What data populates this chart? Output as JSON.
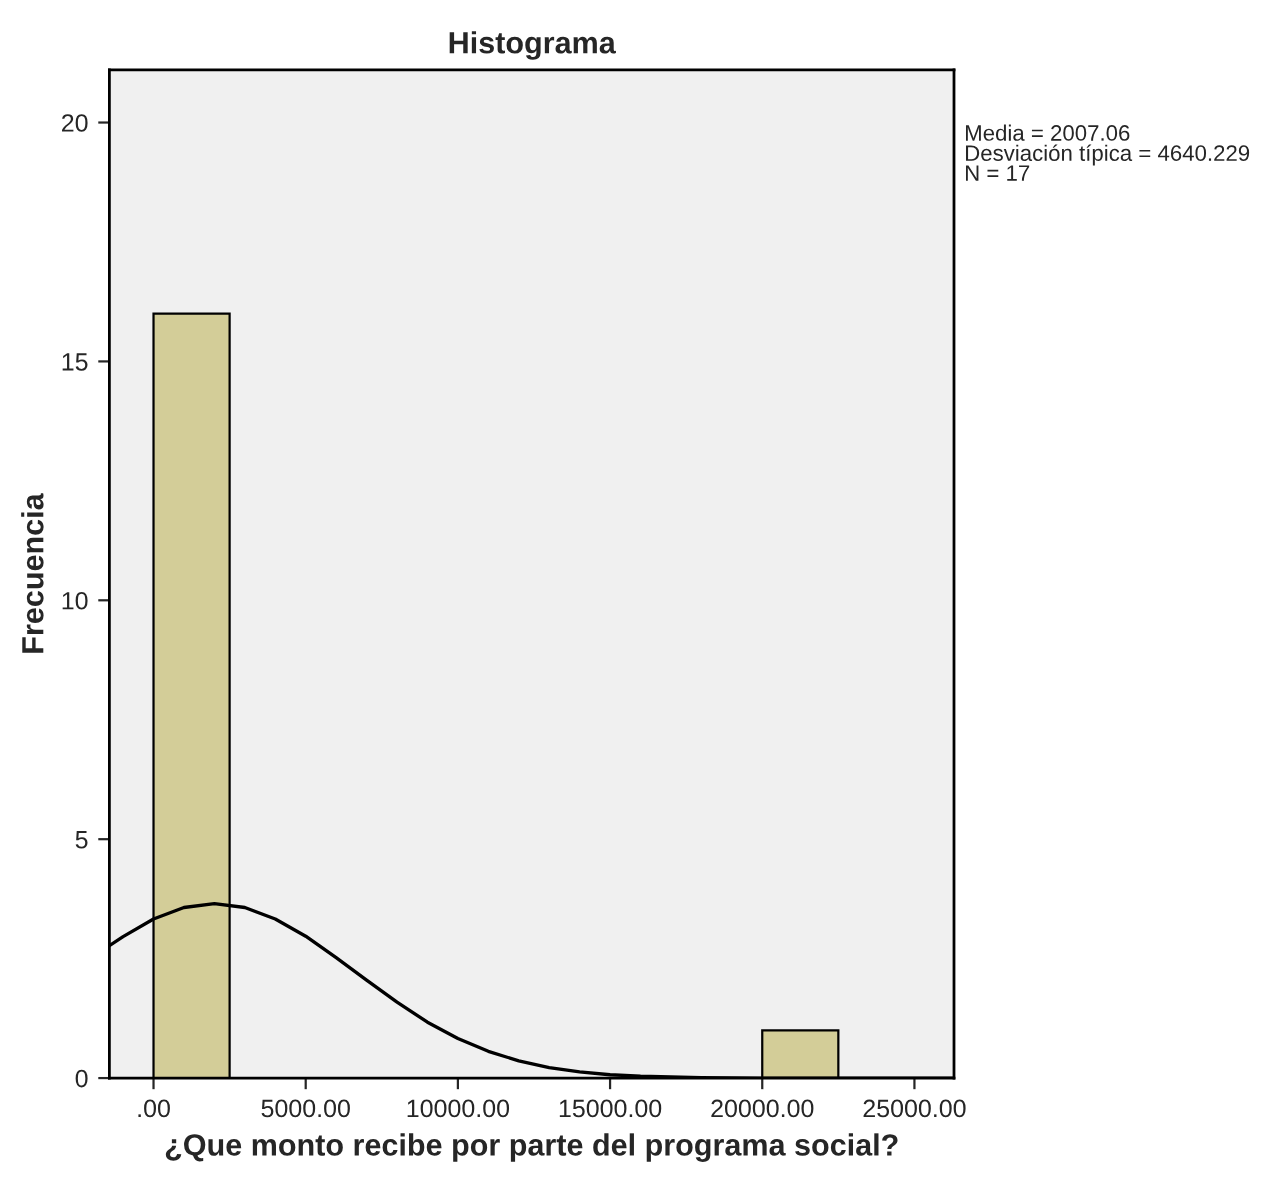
{
  "chart_data": {
    "type": "histogram",
    "title": "Histograma",
    "xlabel": "¿Que monto recibe por parte del programa social?",
    "ylabel": "Frecuencia",
    "annotations": [
      "Media = 2007.06\nDesviación típica = 4640.229\nN = 17"
    ],
    "bins": [
      0,
      2500,
      5000,
      7500,
      10000,
      12500,
      15000,
      17500,
      20000,
      22500
    ],
    "series": [
      {
        "color": "#d3cd98",
        "values": [
          16,
          0,
          0,
          0,
          0,
          0,
          0,
          0,
          1
        ]
      },
      {
        "type": "line",
        "color": "#000000",
        "x": [
          -1450,
          -1000,
          0,
          1000,
          2000,
          3000,
          4000,
          5000,
          6000,
          7000,
          8000,
          9000,
          10000,
          11000,
          12000,
          13000,
          14000,
          15000,
          16000,
          18000,
          20000,
          26300
        ],
        "values": [
          2.77,
          2.96,
          3.33,
          3.57,
          3.65,
          3.57,
          3.33,
          2.97,
          2.52,
          2.05,
          1.59,
          1.17,
          0.83,
          0.56,
          0.36,
          0.22,
          0.13,
          0.07,
          0.04,
          0.01,
          0,
          0
        ]
      }
    ],
    "xlim": [
      -1450,
      26300
    ],
    "ylim": [
      0,
      21.1
    ],
    "xticks": [
      {
        "value": 0,
        "label": ".00"
      },
      {
        "value": 5000,
        "label": "5000.00"
      },
      {
        "value": 10000,
        "label": "10000.00"
      },
      {
        "value": 15000,
        "label": "15000.00"
      },
      {
        "value": 20000,
        "label": "20000.00"
      },
      {
        "value": 25000,
        "label": "25000.00"
      }
    ],
    "yticks": [
      0,
      5,
      10,
      15,
      20
    ],
    "grid": false,
    "legend": false
  }
}
